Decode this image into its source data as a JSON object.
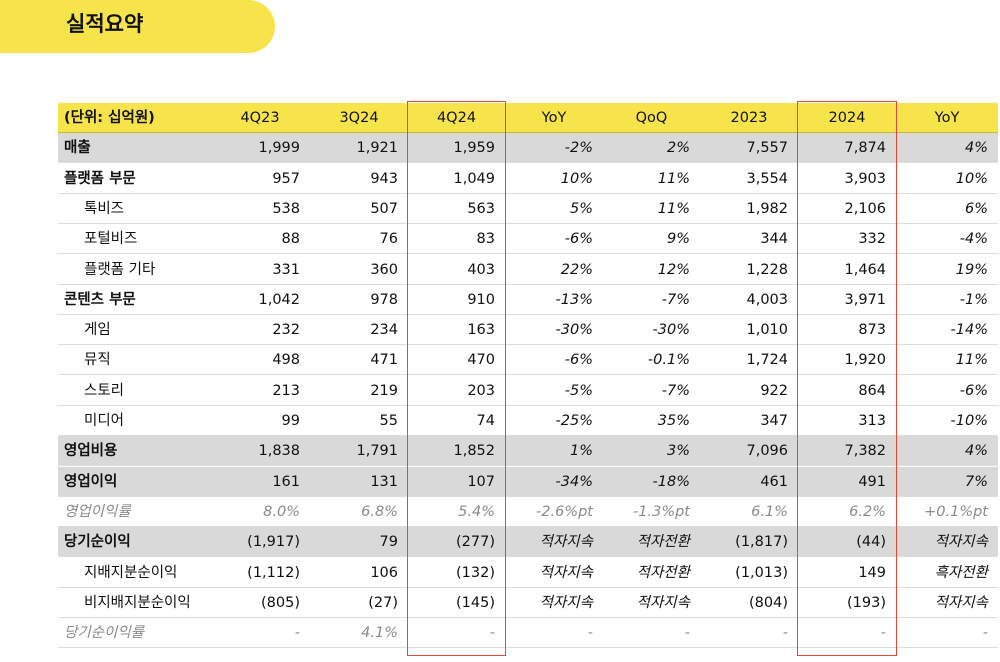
{
  "header": {
    "title": "실적요약"
  },
  "table": {
    "columns": [
      "(단위: 십억원)",
      "4Q23",
      "3Q24",
      "4Q24",
      "YoY",
      "QoQ",
      "2023",
      "2024",
      "YoY"
    ],
    "rows": [
      [
        "매출",
        "1,999",
        "1,921",
        "1,959",
        "-2%",
        "2%",
        "7,557",
        "7,874",
        "4%"
      ],
      [
        "플랫폼 부문",
        "957",
        "943",
        "1,049",
        "10%",
        "11%",
        "3,554",
        "3,903",
        "10%"
      ],
      [
        "톡비즈",
        "538",
        "507",
        "563",
        "5%",
        "11%",
        "1,982",
        "2,106",
        "6%"
      ],
      [
        "포털비즈",
        "88",
        "76",
        "83",
        "-6%",
        "9%",
        "344",
        "332",
        "-4%"
      ],
      [
        "플랫폼 기타",
        "331",
        "360",
        "403",
        "22%",
        "12%",
        "1,228",
        "1,464",
        "19%"
      ],
      [
        "콘텐츠 부문",
        "1,042",
        "978",
        "910",
        "-13%",
        "-7%",
        "4,003",
        "3,971",
        "-1%"
      ],
      [
        "게임",
        "232",
        "234",
        "163",
        "-30%",
        "-30%",
        "1,010",
        "873",
        "-14%"
      ],
      [
        "뮤직",
        "498",
        "471",
        "470",
        "-6%",
        "-0.1%",
        "1,724",
        "1,920",
        "11%"
      ],
      [
        "스토리",
        "213",
        "219",
        "203",
        "-5%",
        "-7%",
        "922",
        "864",
        "-6%"
      ],
      [
        "미디어",
        "99",
        "55",
        "74",
        "-25%",
        "35%",
        "347",
        "313",
        "-10%"
      ],
      [
        "영업비용",
        "1,838",
        "1,791",
        "1,852",
        "1%",
        "3%",
        "7,096",
        "7,382",
        "4%"
      ],
      [
        "영업이익",
        "161",
        "131",
        "107",
        "-34%",
        "-18%",
        "461",
        "491",
        "7%"
      ],
      [
        "영업이익률",
        "8.0%",
        "6.8%",
        "5.4%",
        "-2.6%pt",
        "-1.3%pt",
        "6.1%",
        "6.2%",
        "+0.1%pt"
      ],
      [
        "당기순이익",
        "(1,917)",
        "79",
        "(277)",
        "적자지속",
        "적자전환",
        "(1,817)",
        "(44)",
        "적자지속"
      ],
      [
        "지배지분순이익",
        "(1,112)",
        "106",
        "(132)",
        "적자지속",
        "적자전환",
        "(1,013)",
        "149",
        "흑자전환"
      ],
      [
        "비지배지분순이익",
        "(805)",
        "(27)",
        "(145)",
        "적자지속",
        "적자지속",
        "(804)",
        "(193)",
        "적자지속"
      ],
      [
        "당기순이익률",
        "-",
        "4.1%",
        "-",
        "-",
        "-",
        "-",
        "-",
        "-"
      ]
    ]
  }
}
